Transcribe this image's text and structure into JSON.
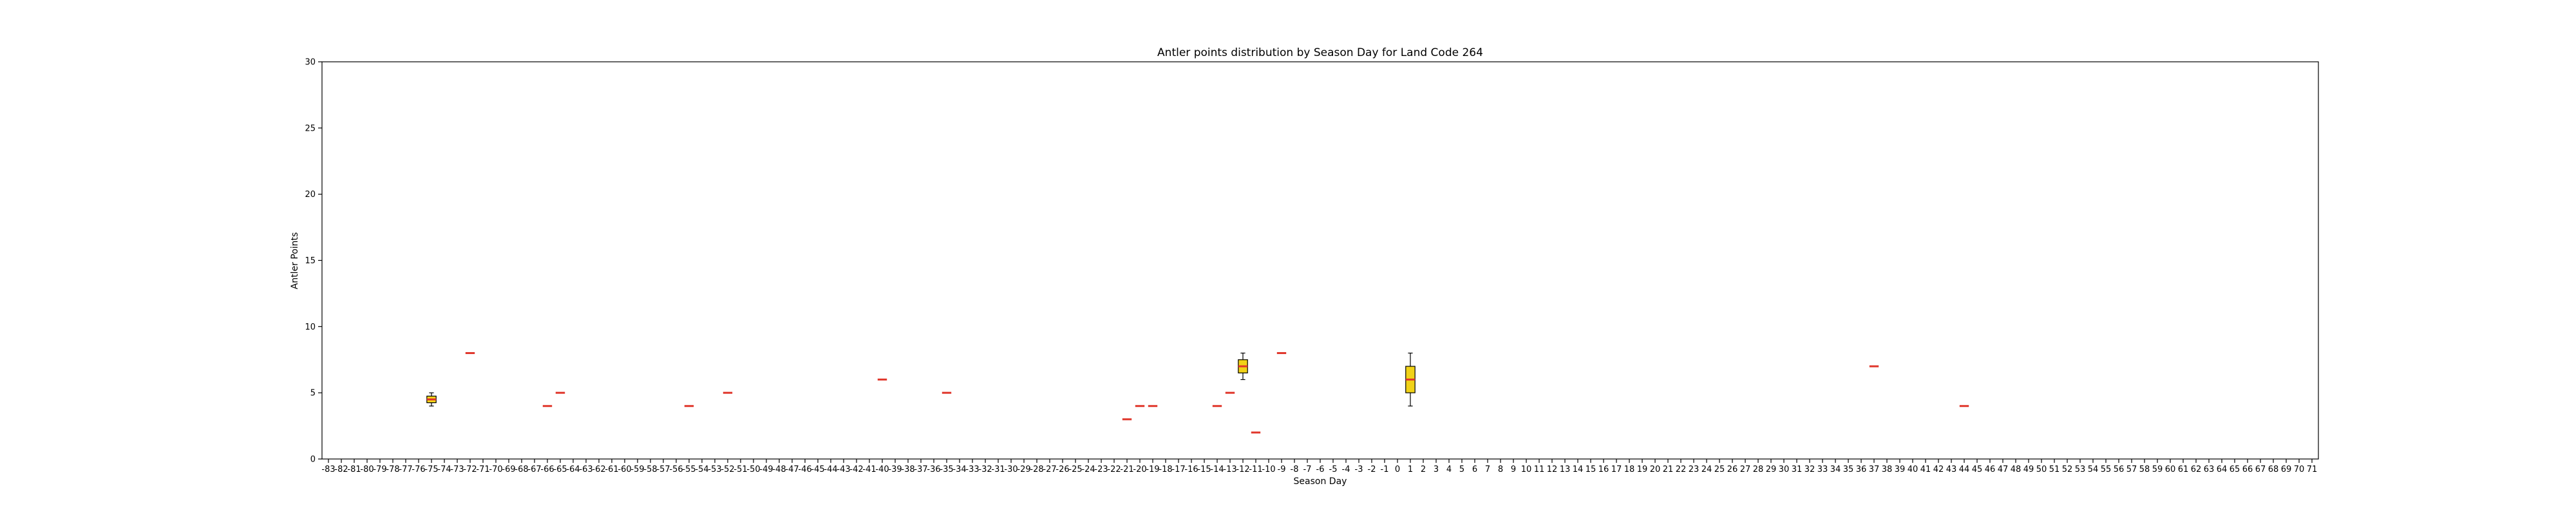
{
  "chart_data": {
    "type": "box",
    "title": "Antler points distribution by Season Day for Land Code 264",
    "xlabel": "Season Day",
    "ylabel": "Antler Points",
    "x_categories": [
      -83,
      -82,
      -81,
      -80,
      -79,
      -78,
      -77,
      -76,
      -75,
      -74,
      -73,
      -72,
      -71,
      -70,
      -69,
      -68,
      -67,
      -66,
      -65,
      -64,
      -63,
      -62,
      -61,
      -60,
      -59,
      -58,
      -57,
      -56,
      -55,
      -54,
      -53,
      -52,
      -51,
      -50,
      -49,
      -48,
      -47,
      -46,
      -45,
      -44,
      -43,
      -42,
      -41,
      -40,
      -39,
      -38,
      -37,
      -36,
      -35,
      -34,
      -33,
      -32,
      -31,
      -30,
      -29,
      -28,
      -27,
      -26,
      -25,
      -24,
      -23,
      -22,
      -21,
      -20,
      -19,
      -18,
      -17,
      -16,
      -15,
      -14,
      -13,
      -12,
      -11,
      -10,
      -9,
      -8,
      -7,
      -6,
      -5,
      -4,
      -3,
      -2,
      -1,
      0,
      1,
      2,
      3,
      4,
      5,
      6,
      7,
      8,
      9,
      10,
      11,
      12,
      13,
      14,
      15,
      16,
      17,
      18,
      19,
      20,
      21,
      22,
      23,
      24,
      25,
      26,
      27,
      28,
      29,
      30,
      31,
      32,
      33,
      34,
      35,
      36,
      37,
      38,
      39,
      40,
      41,
      42,
      43,
      44,
      45,
      46,
      47,
      48,
      49,
      50,
      51,
      52,
      53,
      54,
      55,
      56,
      57,
      58,
      59,
      60,
      61,
      62,
      63,
      64,
      65,
      66,
      67,
      68,
      69,
      70,
      71
    ],
    "ylim": [
      0,
      30
    ],
    "yticks": [
      0,
      5,
      10,
      15,
      20,
      25,
      30
    ],
    "grid": false,
    "box_color": "#f1d218",
    "median_color": "#e0362b",
    "boxes": [
      {
        "day": -75,
        "whislo": 4,
        "q1": 4.25,
        "median": 4.5,
        "q3": 4.75,
        "whishi": 5
      },
      {
        "day": -72,
        "whislo": 8,
        "q1": 8,
        "median": 8,
        "q3": 8,
        "whishi": 8
      },
      {
        "day": -66,
        "whislo": 4,
        "q1": 4,
        "median": 4,
        "q3": 4,
        "whishi": 4
      },
      {
        "day": -65,
        "whislo": 5,
        "q1": 5,
        "median": 5,
        "q3": 5,
        "whishi": 5
      },
      {
        "day": -55,
        "whislo": 4,
        "q1": 4,
        "median": 4,
        "q3": 4,
        "whishi": 4
      },
      {
        "day": -52,
        "whislo": 5,
        "q1": 5,
        "median": 5,
        "q3": 5,
        "whishi": 5
      },
      {
        "day": -40,
        "whislo": 6,
        "q1": 6,
        "median": 6,
        "q3": 6,
        "whishi": 6
      },
      {
        "day": -35,
        "whislo": 5,
        "q1": 5,
        "median": 5,
        "q3": 5,
        "whishi": 5
      },
      {
        "day": -21,
        "whislo": 3,
        "q1": 3,
        "median": 3,
        "q3": 3,
        "whishi": 3
      },
      {
        "day": -20,
        "whislo": 4,
        "q1": 4,
        "median": 4,
        "q3": 4,
        "whishi": 4
      },
      {
        "day": -19,
        "whislo": 4,
        "q1": 4,
        "median": 4,
        "q3": 4,
        "whishi": 4
      },
      {
        "day": -14,
        "whislo": 4,
        "q1": 4,
        "median": 4,
        "q3": 4,
        "whishi": 4
      },
      {
        "day": -13,
        "whislo": 5,
        "q1": 5,
        "median": 5,
        "q3": 5,
        "whishi": 5
      },
      {
        "day": -12,
        "whislo": 6,
        "q1": 6.5,
        "median": 7,
        "q3": 7.5,
        "whishi": 8
      },
      {
        "day": -11,
        "whislo": 2,
        "q1": 2,
        "median": 2,
        "q3": 2,
        "whishi": 2
      },
      {
        "day": -9,
        "whislo": 8,
        "q1": 8,
        "median": 8,
        "q3": 8,
        "whishi": 8
      },
      {
        "day": 1,
        "whislo": 4,
        "q1": 5,
        "median": 6,
        "q3": 7,
        "whishi": 8
      },
      {
        "day": 37,
        "whislo": 7,
        "q1": 7,
        "median": 7,
        "q3": 7,
        "whishi": 7
      },
      {
        "day": 44,
        "whislo": 4,
        "q1": 4,
        "median": 4,
        "q3": 4,
        "whishi": 4
      }
    ]
  }
}
